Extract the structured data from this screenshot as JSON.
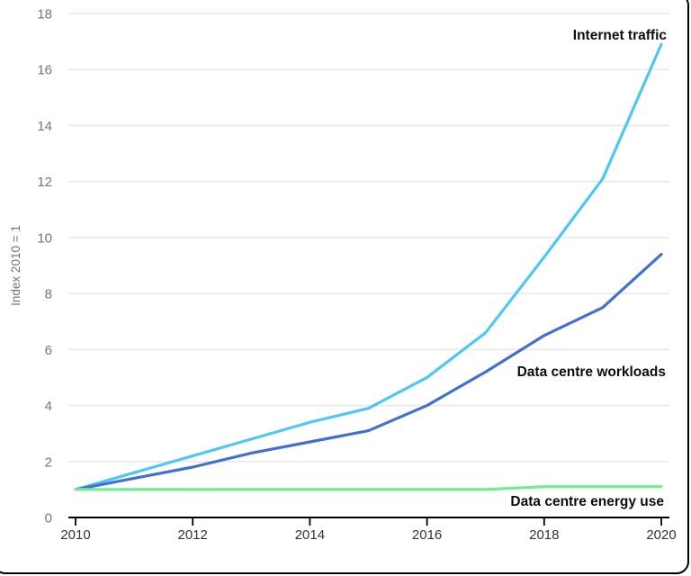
{
  "chart_data": {
    "type": "line",
    "title": "",
    "ylabel": "Index 2010 = 1",
    "xlabel": "",
    "x": [
      2010,
      2011,
      2012,
      2013,
      2014,
      2015,
      2016,
      2017,
      2018,
      2019,
      2020
    ],
    "xticks": [
      2010,
      2012,
      2014,
      2016,
      2018,
      2020
    ],
    "yticks": [
      0,
      2,
      4,
      6,
      8,
      10,
      12,
      14,
      16,
      18
    ],
    "ylim": [
      0,
      18
    ],
    "xlim": [
      2010,
      2020
    ],
    "grid": "horizontal",
    "legend_position": "end-of-line-labels",
    "series": [
      {
        "name": "internet-traffic",
        "label": "Internet traffic",
        "color": "#4DC8F5",
        "values": [
          1.0,
          1.6,
          2.2,
          2.8,
          3.4,
          3.9,
          5.0,
          6.6,
          9.3,
          12.1,
          16.9
        ]
      },
      {
        "name": "data-centre-workloads",
        "label": "Data centre workloads",
        "color": "#4170CE",
        "values": [
          1.0,
          1.4,
          1.8,
          2.3,
          2.7,
          3.1,
          4.0,
          5.2,
          6.5,
          7.5,
          9.4
        ]
      },
      {
        "name": "data-centre-energy-use",
        "label": "Data centre energy use",
        "color": "#75EC92",
        "values": [
          1.0,
          1.0,
          1.0,
          1.0,
          1.0,
          1.0,
          1.0,
          1.0,
          1.1,
          1.1,
          1.1
        ]
      }
    ],
    "colors": {
      "axis": "#000000",
      "grid": "#e9e9e9",
      "x_tick_label": "#333333",
      "y_tick_label": "#757575",
      "series_label_text": "#0d0d0d",
      "background": "#ffffff"
    }
  }
}
